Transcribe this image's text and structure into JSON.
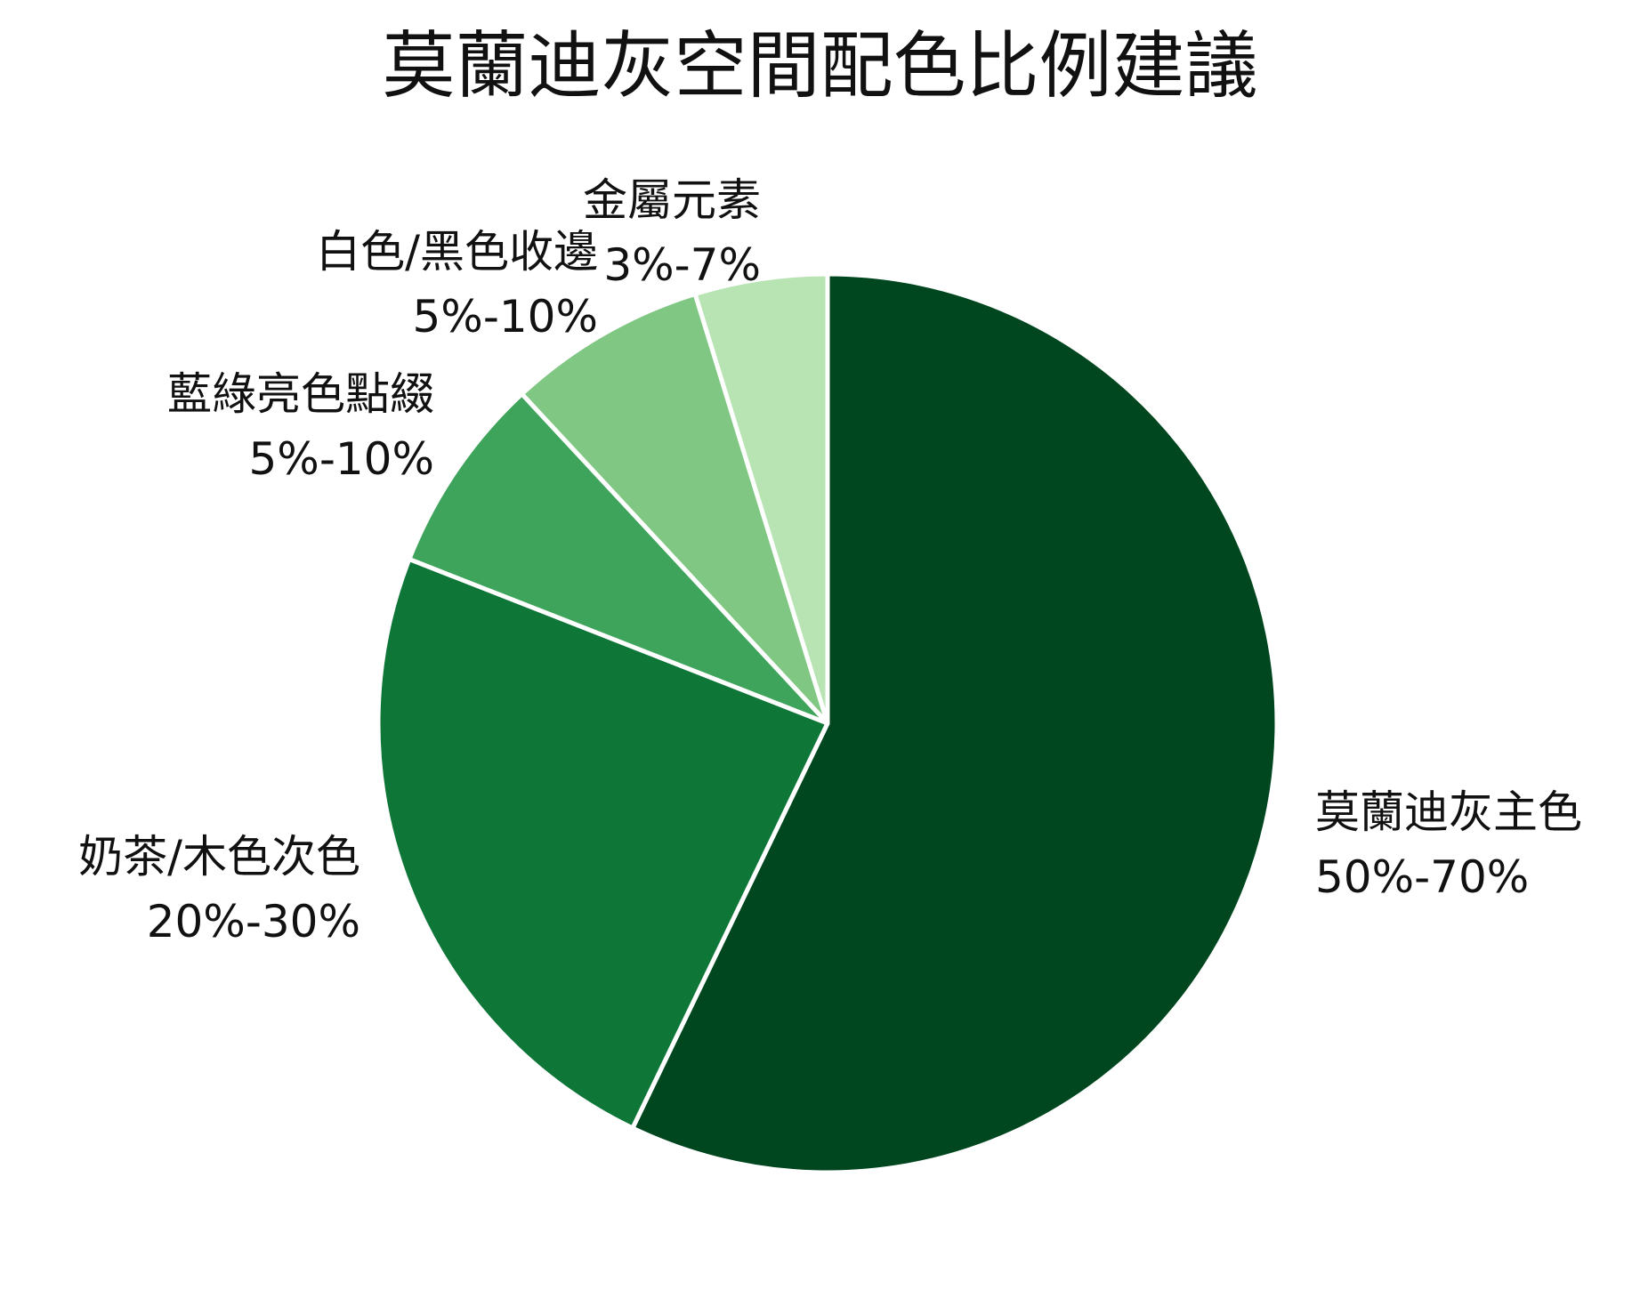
{
  "chart_data": {
    "type": "pie",
    "title": "莫蘭迪灰空間配色比例建議",
    "slices": [
      {
        "name": "莫蘭迪灰主色",
        "range_label": "50%-70%",
        "value": 60,
        "color": "#00461e"
      },
      {
        "name": "奶茶/木色次色",
        "range_label": "20%-30%",
        "value": 25,
        "color": "#0e7637"
      },
      {
        "name": "藍綠亮色點綴",
        "range_label": "5%-10%",
        "value": 7.5,
        "color": "#3fa45b"
      },
      {
        "name": "白色/黑色收邊",
        "range_label": "5%-10%",
        "value": 7.5,
        "color": "#80c783"
      },
      {
        "name": "金屬元素",
        "range_label": "3%-7%",
        "value": 5,
        "color": "#b8e3b3"
      }
    ],
    "start_angle": "top",
    "direction": "clockwise",
    "slice_border_color": "#ffffff",
    "legend": "none"
  }
}
